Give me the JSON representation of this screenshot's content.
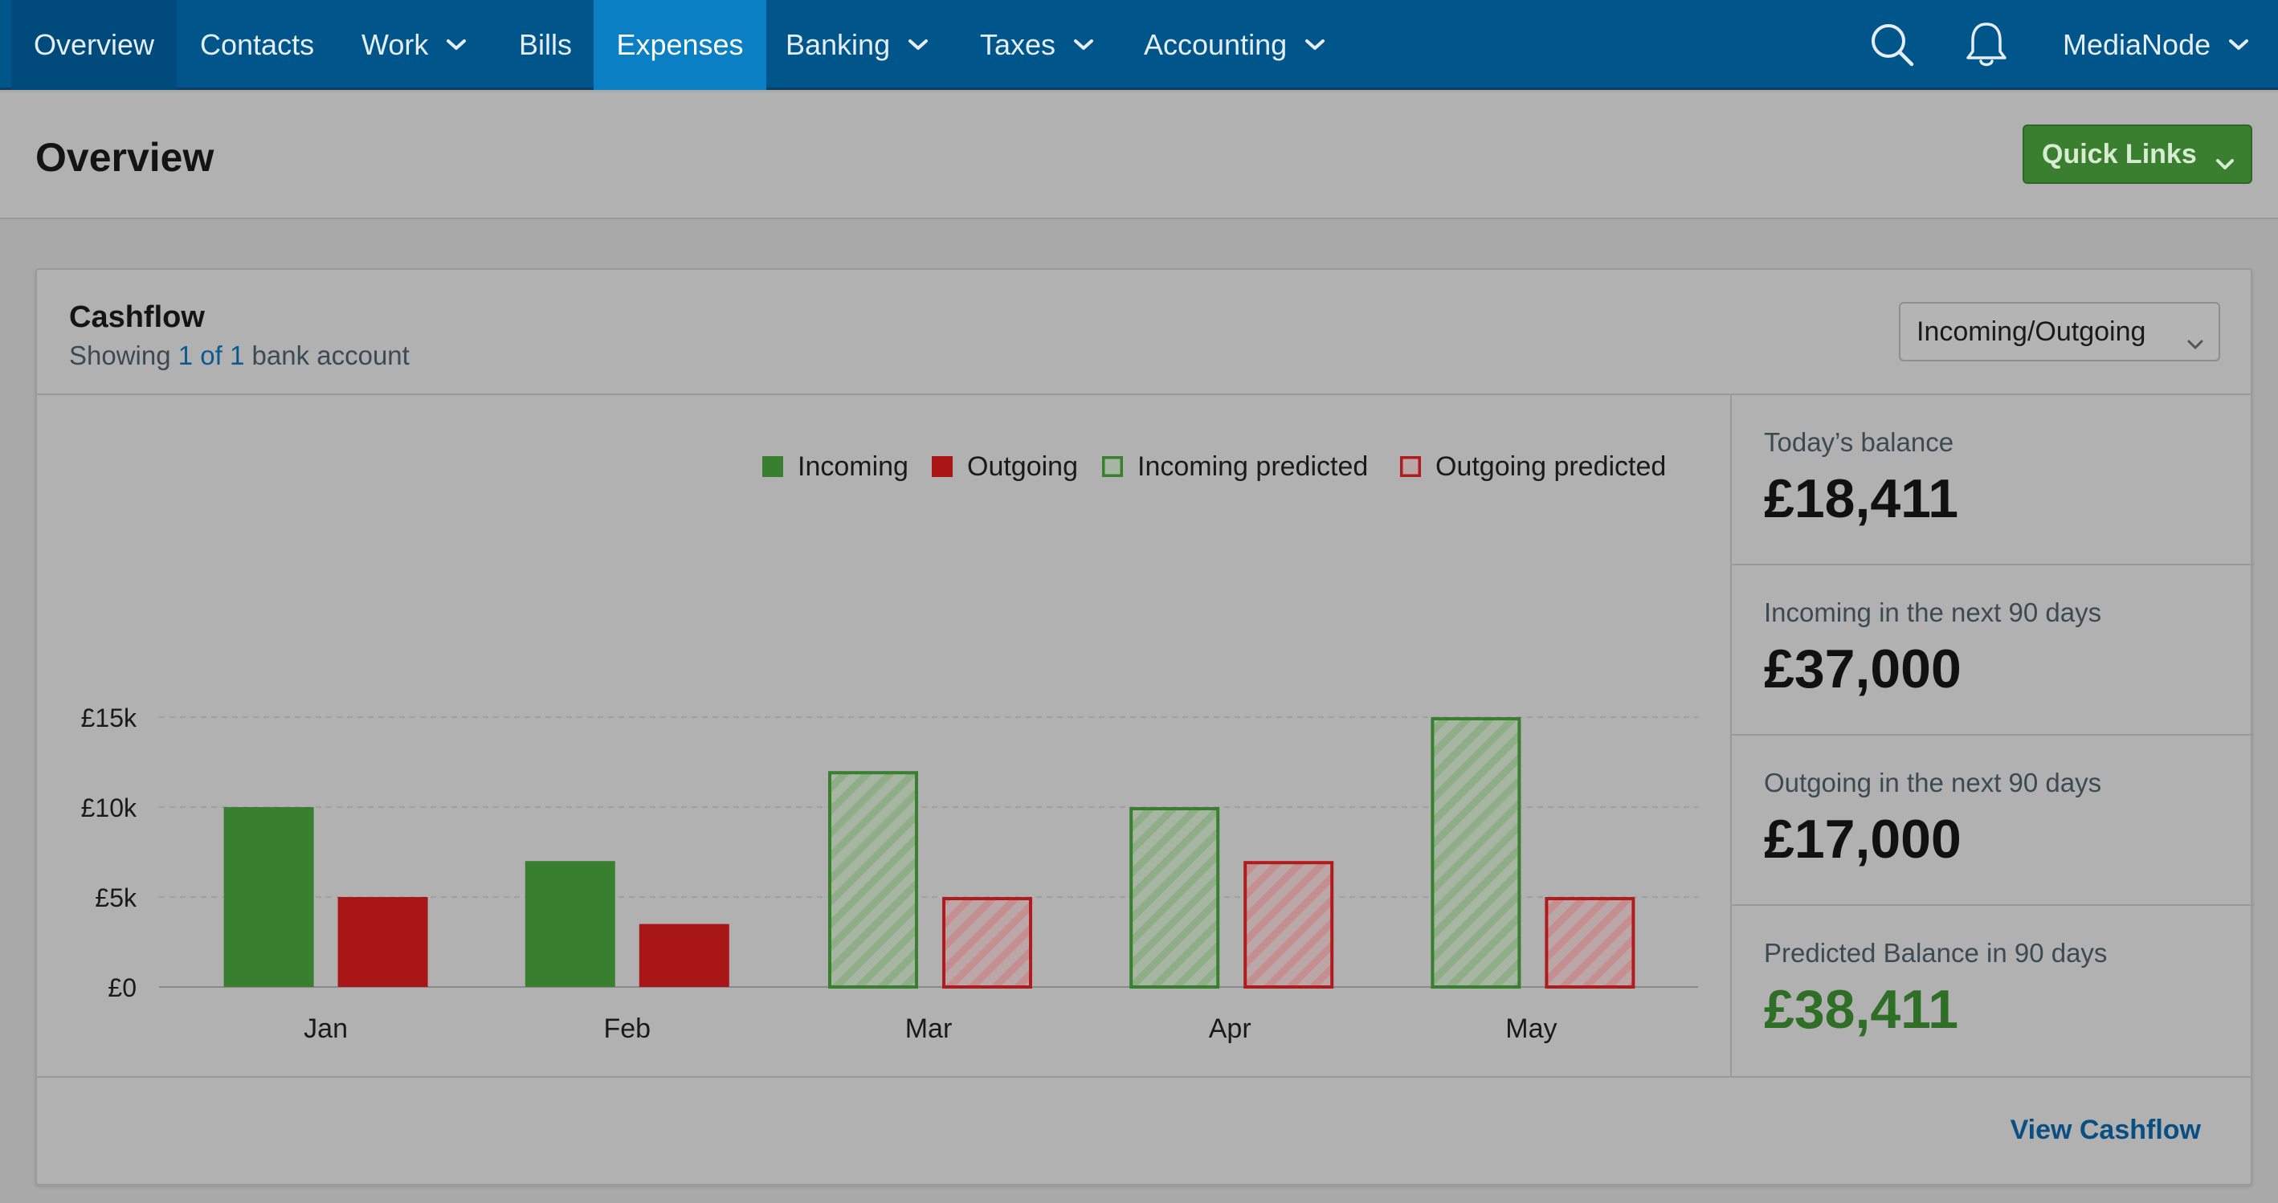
{
  "nav": {
    "items": [
      {
        "label": "Overview",
        "dropdown": false
      },
      {
        "label": "Contacts",
        "dropdown": false
      },
      {
        "label": "Work",
        "dropdown": true
      },
      {
        "label": "Bills",
        "dropdown": false
      },
      {
        "label": "Expenses",
        "dropdown": false
      },
      {
        "label": "Banking",
        "dropdown": true
      },
      {
        "label": "Taxes",
        "dropdown": true
      },
      {
        "label": "Accounting",
        "dropdown": true
      }
    ],
    "active": "Expenses",
    "account": "MediaNode",
    "icons": [
      "search-icon",
      "bell-icon",
      "chevron-down-icon"
    ]
  },
  "page": {
    "title": "Overview",
    "quick_links": "Quick Links"
  },
  "cashflow": {
    "title": "Cashflow",
    "showing_prefix": "Showing",
    "showing_link": "1 of 1",
    "showing_suffix": "bank account",
    "select_value": "Incoming/Outgoing",
    "view_link": "View Cashflow"
  },
  "stats": [
    {
      "label": "Today’s balance",
      "value": "£18,411"
    },
    {
      "label": "Incoming in the next 90 days",
      "value": "£37,000"
    },
    {
      "label": "Outgoing in the next 90 days",
      "value": "£17,000"
    },
    {
      "label": "Predicted Balance in 90 days",
      "value": "£38,411"
    }
  ],
  "colors": {
    "nav_bg": "#00568a",
    "nav_active": "#0a7fc4",
    "incoming": "#388030",
    "outgoing": "#a81618",
    "predicted_positive": "#2f6e26",
    "link": "#0b5a8f"
  },
  "chart_data": {
    "type": "bar",
    "title": "",
    "categories": [
      "Jan",
      "Feb",
      "Mar",
      "Apr",
      "May"
    ],
    "series": [
      {
        "name": "Incoming",
        "values": [
          10000,
          7000,
          null,
          null,
          null
        ]
      },
      {
        "name": "Outgoing",
        "values": [
          5000,
          3500,
          null,
          null,
          null
        ]
      },
      {
        "name": "Incoming predicted",
        "values": [
          null,
          null,
          12000,
          10000,
          15000
        ]
      },
      {
        "name": "Outgoing predicted",
        "values": [
          null,
          null,
          5000,
          7000,
          5000
        ]
      }
    ],
    "ylim": [
      0,
      15000
    ],
    "yticks": [
      {
        "value": 0,
        "label": "£0"
      },
      {
        "value": 5000,
        "label": "£5k"
      },
      {
        "value": 10000,
        "label": "£10k"
      },
      {
        "value": 15000,
        "label": "£15k"
      }
    ],
    "grid": true,
    "legend": "top-right"
  }
}
